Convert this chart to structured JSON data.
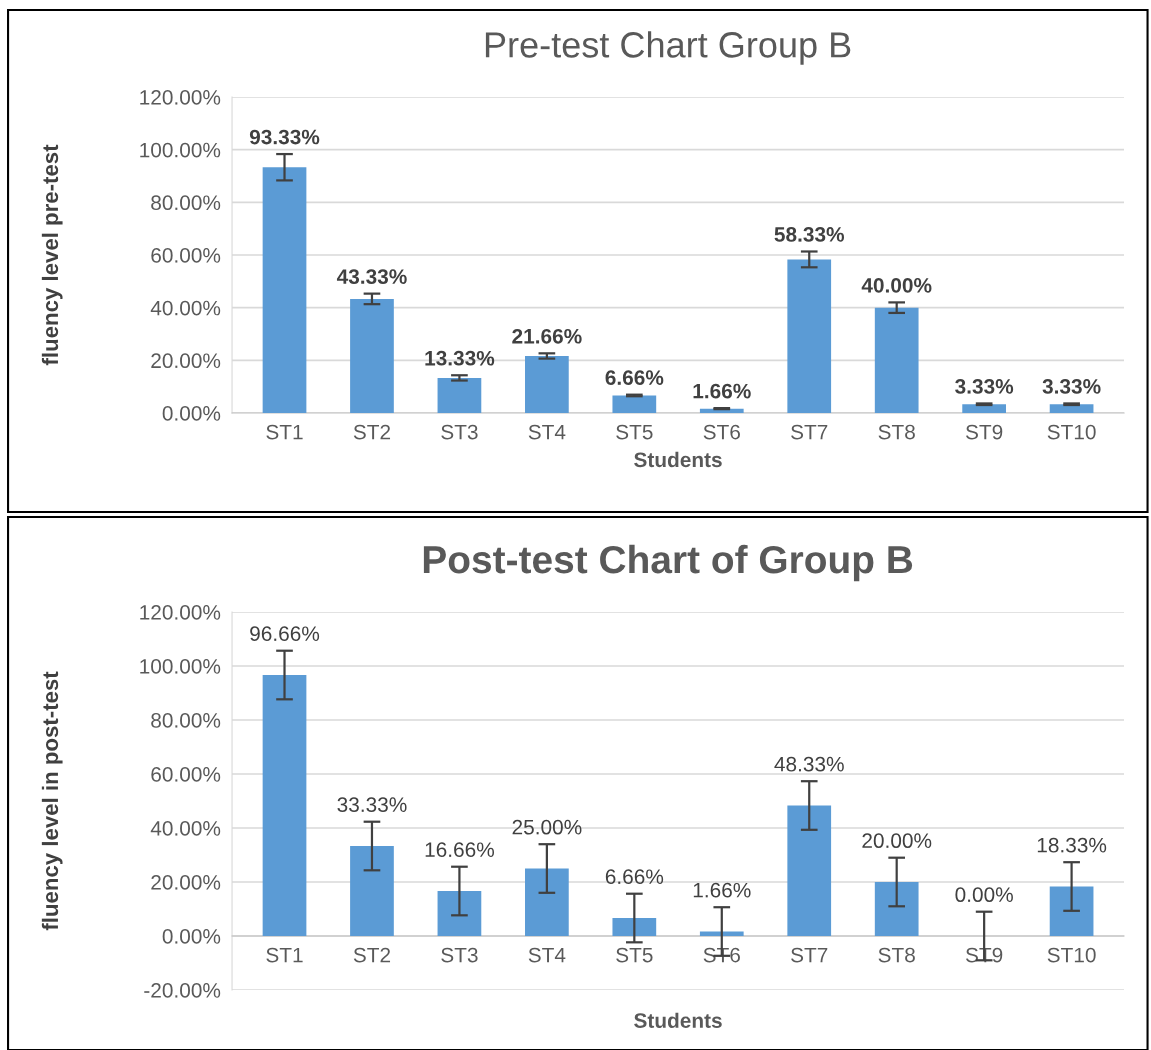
{
  "chart_data": [
    {
      "type": "bar",
      "title": "Pre-test Chart Group B",
      "xlabel": "Students",
      "ylabel": "fluency level pre-test",
      "categories": [
        "ST1",
        "ST2",
        "ST3",
        "ST4",
        "ST5",
        "ST6",
        "ST7",
        "ST8",
        "ST9",
        "ST10"
      ],
      "values": [
        93.33,
        43.33,
        13.33,
        21.66,
        6.66,
        1.66,
        58.33,
        40.0,
        3.33,
        3.33
      ],
      "value_labels": [
        "93.33%",
        "43.33%",
        "13.33%",
        "21.66%",
        "6.66%",
        "1.66%",
        "58.33%",
        "40.00%",
        "3.33%",
        "3.33%"
      ],
      "errors": [
        5,
        2,
        1,
        1,
        0.3,
        0.2,
        3,
        2,
        0.3,
        0.3
      ],
      "color": "#5b9bd5",
      "grid": "y",
      "ylim": [
        0,
        120
      ],
      "yticks": [
        {
          "value": 0,
          "label": "0.00%"
        },
        {
          "value": 20,
          "label": "20.00%"
        },
        {
          "value": 40,
          "label": "40.00%"
        },
        {
          "value": 60,
          "label": "60.00%"
        },
        {
          "value": 80,
          "label": "80.00%"
        },
        {
          "value": 100,
          "label": "100.00%"
        },
        {
          "value": 120,
          "label": "120.00%"
        }
      ]
    },
    {
      "type": "bar",
      "title": "Post-test Chart of Group B",
      "xlabel": "Students",
      "ylabel": "fluency level in post-test",
      "categories": [
        "ST1",
        "ST2",
        "ST3",
        "ST4",
        "ST5",
        "ST6",
        "ST7",
        "ST8",
        "ST9",
        "ST10"
      ],
      "values": [
        96.66,
        33.33,
        16.66,
        25.0,
        6.66,
        1.66,
        48.33,
        20.0,
        0.0,
        18.33
      ],
      "value_labels": [
        "96.66%",
        "33.33%",
        "16.66%",
        "25.00%",
        "6.66%",
        "1.66%",
        "48.33%",
        "20.00%",
        "0.00%",
        "18.33%"
      ],
      "errors": [
        9,
        9,
        9,
        9,
        9,
        9,
        9,
        9,
        9,
        9
      ],
      "color": "#5b9bd5",
      "grid": "y",
      "ylim": [
        -20,
        120
      ],
      "yticks": [
        {
          "value": -20,
          "label": "-20.00%"
        },
        {
          "value": 0,
          "label": "0.00%"
        },
        {
          "value": 20,
          "label": "20.00%"
        },
        {
          "value": 40,
          "label": "40.00%"
        },
        {
          "value": 60,
          "label": "60.00%"
        },
        {
          "value": 80,
          "label": "80.00%"
        },
        {
          "value": 100,
          "label": "100.00%"
        },
        {
          "value": 120,
          "label": "120.00%"
        }
      ]
    }
  ]
}
